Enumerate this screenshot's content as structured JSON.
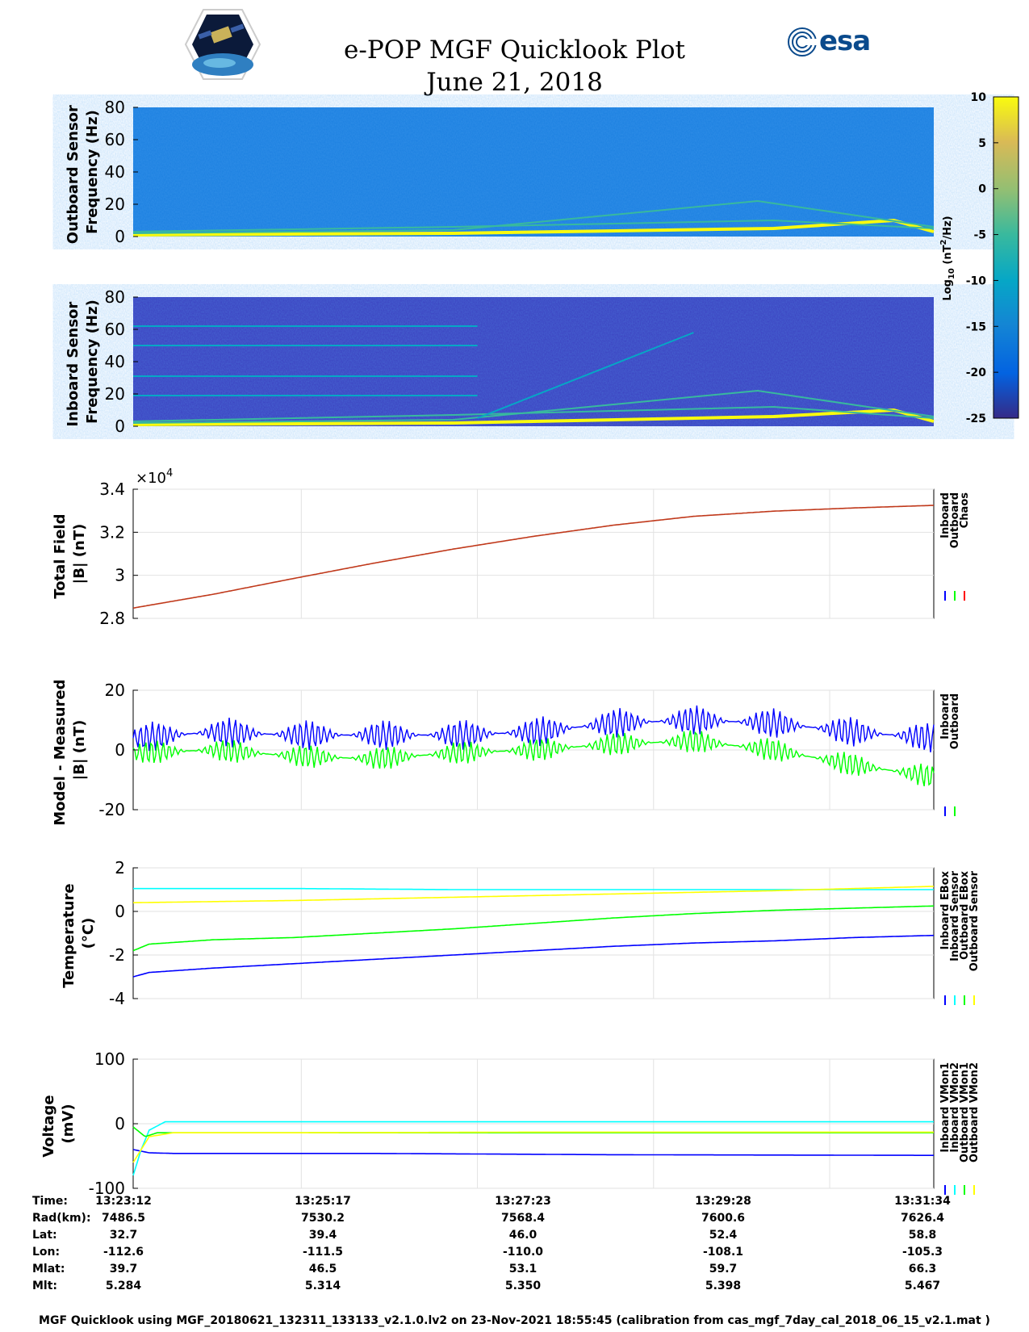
{
  "header": {
    "title_line1": "e-POP MGF Quicklook Plot",
    "title_line2": "June 21, 2018",
    "esa_text": "esa"
  },
  "colorbar": {
    "label": "Log10 (nT2/Hz)",
    "ticks": [
      10,
      5,
      0,
      -5,
      -10,
      -15,
      -20,
      -25
    ]
  },
  "chart_data": [
    {
      "type": "heatmap",
      "name": "outboard-spectrogram",
      "ylabel": "Outboard Sensor Frequency (Hz)",
      "ylim": [
        0,
        80
      ],
      "yticks": [
        0,
        20,
        40,
        60,
        80
      ],
      "clim": [
        -25,
        10
      ],
      "background_level": -13,
      "lines": [
        {
          "x": [
            0,
            0.4,
            0.8,
            0.95,
            1
          ],
          "y": [
            1,
            2,
            5,
            10,
            3
          ],
          "level": 8
        },
        {
          "x": [
            0,
            0.4,
            0.78,
            1
          ],
          "y": [
            2,
            4,
            22,
            6
          ],
          "level": -8
        },
        {
          "x": [
            0,
            0.4,
            0.8,
            1
          ],
          "y": [
            3,
            6,
            10,
            5
          ],
          "level": -6
        }
      ]
    },
    {
      "type": "heatmap",
      "name": "inboard-spectrogram",
      "ylabel": "Inboard Sensor Frequency (Hz)",
      "ylim": [
        0,
        80
      ],
      "yticks": [
        0,
        20,
        40,
        60,
        80
      ],
      "clim": [
        -25,
        10
      ],
      "background_level": -21,
      "lines": [
        {
          "x": [
            0,
            0.4,
            0.8,
            0.95,
            1
          ],
          "y": [
            1,
            2,
            6,
            10,
            3
          ],
          "level": 8
        },
        {
          "x": [
            0,
            0.4,
            0.78,
            1
          ],
          "y": [
            2,
            4,
            22,
            6
          ],
          "level": -6
        },
        {
          "x": [
            0,
            0.4,
            0.8,
            1
          ],
          "y": [
            3,
            7,
            12,
            5
          ],
          "level": -8
        },
        {
          "x": [
            0,
            0.43
          ],
          "y": [
            19,
            19
          ],
          "level": -10
        },
        {
          "x": [
            0,
            0.43
          ],
          "y": [
            31,
            31
          ],
          "level": -12
        },
        {
          "x": [
            0,
            0.43
          ],
          "y": [
            50,
            50
          ],
          "level": -13
        },
        {
          "x": [
            0,
            0.43
          ],
          "y": [
            62,
            62
          ],
          "level": -14
        },
        {
          "x": [
            0.43,
            0.7
          ],
          "y": [
            5,
            58
          ],
          "level": -13
        }
      ]
    },
    {
      "type": "line",
      "name": "total-field",
      "ylabel": "Total Field |B| (nT)",
      "multiplier": "×10",
      "multiplier_exp": "4",
      "ylim": [
        2.8,
        3.4
      ],
      "yticks": [
        2.8,
        3,
        3.2,
        3.4
      ],
      "ytick_labels": [
        "2.8",
        "3",
        "3.2",
        "3.4"
      ],
      "legend": [
        "Inboard",
        "Outboard",
        "Chaos"
      ],
      "legend_colors": [
        "#0000ff",
        "#00ff00",
        "#ff0000"
      ],
      "series": [
        {
          "name": "Chaos",
          "color": "#c0391b",
          "x": [
            0,
            0.1,
            0.2,
            0.3,
            0.4,
            0.5,
            0.6,
            0.7,
            0.8,
            0.9,
            1.0
          ],
          "values": [
            2.848,
            2.912,
            2.985,
            3.056,
            3.122,
            3.181,
            3.233,
            3.274,
            3.298,
            3.313,
            3.325
          ]
        }
      ]
    },
    {
      "type": "line",
      "name": "model-minus-measured",
      "ylabel": "Model - Measured |B| (nT)",
      "ylim": [
        -20,
        20
      ],
      "yticks": [
        -20,
        0,
        20
      ],
      "ytick_labels": [
        "-20",
        "0",
        "20"
      ],
      "legend": [
        "Inboard",
        "Outboard"
      ],
      "legend_colors": [
        "#0000ff",
        "#00ff00"
      ],
      "series": [
        {
          "name": "Inboard",
          "color": "#0000ff",
          "x": [
            0,
            0.1,
            0.2,
            0.3,
            0.4,
            0.5,
            0.6,
            0.7,
            0.8,
            0.9,
            1.0
          ],
          "values": [
            4,
            6,
            5,
            5,
            5,
            6,
            9,
            10,
            9,
            6,
            4
          ],
          "amplitude": 5
        },
        {
          "name": "Outboard",
          "color": "#00ff00",
          "x": [
            0,
            0.1,
            0.2,
            0.3,
            0.4,
            0.5,
            0.6,
            0.7,
            0.8,
            0.9,
            1.0
          ],
          "values": [
            -1,
            0,
            -2,
            -3,
            -1,
            0,
            2,
            3,
            0,
            -5,
            -9
          ],
          "amplitude": 4
        }
      ]
    },
    {
      "type": "line",
      "name": "temperature",
      "ylabel": "Temperature (°C)",
      "ylim": [
        -4,
        2
      ],
      "yticks": [
        -4,
        -2,
        0,
        2
      ],
      "ytick_labels": [
        "-4",
        "-2",
        "0",
        "2"
      ],
      "legend": [
        "Inboard EBox",
        "Inboard Sensor",
        "Outboard EBox",
        "Outboard Sensor"
      ],
      "legend_colors": [
        "#0000ff",
        "#00ffff",
        "#00ff00",
        "#ffff00"
      ],
      "series": [
        {
          "name": "Inboard EBox",
          "color": "#0000ff",
          "x": [
            0,
            0.02,
            0.1,
            0.2,
            0.3,
            0.4,
            0.5,
            0.6,
            0.7,
            0.8,
            0.9,
            1.0
          ],
          "values": [
            -3.0,
            -2.8,
            -2.6,
            -2.4,
            -2.2,
            -2.0,
            -1.8,
            -1.6,
            -1.45,
            -1.35,
            -1.2,
            -1.1
          ]
        },
        {
          "name": "Inboard Sensor",
          "color": "#00ffff",
          "x": [
            0,
            0.2,
            0.4,
            0.6,
            0.8,
            1.0
          ],
          "values": [
            1.05,
            1.05,
            1.0,
            1.0,
            1.0,
            1.0
          ]
        },
        {
          "name": "Outboard EBox",
          "color": "#00ff00",
          "x": [
            0,
            0.02,
            0.1,
            0.2,
            0.3,
            0.4,
            0.5,
            0.6,
            0.7,
            0.8,
            0.9,
            1.0
          ],
          "values": [
            -1.8,
            -1.5,
            -1.3,
            -1.2,
            -1.0,
            -0.8,
            -0.55,
            -0.3,
            -0.1,
            0.05,
            0.15,
            0.25
          ]
        },
        {
          "name": "Outboard Sensor",
          "color": "#ffff00",
          "x": [
            0,
            0.2,
            0.4,
            0.6,
            0.8,
            1.0
          ],
          "values": [
            0.4,
            0.5,
            0.65,
            0.8,
            0.95,
            1.15
          ]
        }
      ]
    },
    {
      "type": "line",
      "name": "voltage",
      "ylabel": "Voltage (mV)",
      "ylim": [
        -100,
        100
      ],
      "yticks": [
        -100,
        0,
        100
      ],
      "ytick_labels": [
        "-100",
        "0",
        "100"
      ],
      "legend": [
        "Inboard VMon1",
        "Inboard VMon2",
        "Outboard VMon1",
        "Outboard VMon2"
      ],
      "legend_colors": [
        "#0000ff",
        "#00ffff",
        "#00ff00",
        "#ffff00"
      ],
      "series": [
        {
          "name": "Inboard VMon1",
          "color": "#0000ff",
          "x": [
            0,
            0.02,
            0.05,
            0.3,
            0.6,
            1.0
          ],
          "values": [
            -40,
            -45,
            -46,
            -46,
            -48,
            -49
          ]
        },
        {
          "name": "Inboard VMon2",
          "color": "#00ffff",
          "x": [
            0,
            0.01,
            0.02,
            0.04,
            0.1,
            1.0
          ],
          "values": [
            -80,
            -40,
            -10,
            3,
            3,
            3
          ]
        },
        {
          "name": "Outboard VMon1",
          "color": "#00ff00",
          "x": [
            0,
            0.015,
            0.03,
            0.1,
            0.5,
            1.0
          ],
          "values": [
            -5,
            -20,
            -14,
            -14,
            -14,
            -14
          ]
        },
        {
          "name": "Outboard VMon2",
          "color": "#ffff00",
          "x": [
            0,
            0.02,
            0.05,
            0.2,
            0.5,
            1.0
          ],
          "values": [
            -60,
            -20,
            -14,
            -14,
            -13,
            -13
          ]
        }
      ]
    }
  ],
  "time_table": {
    "rows": [
      {
        "label": "Time:",
        "values": [
          "13:23:12",
          "13:25:17",
          "13:27:23",
          "13:29:28",
          "13:31:34"
        ]
      },
      {
        "label": "Rad(km):",
        "values": [
          "7486.5",
          "7530.2",
          "7568.4",
          "7600.6",
          "7626.4"
        ]
      },
      {
        "label": "Lat:",
        "values": [
          "32.7",
          "39.4",
          "46.0",
          "52.4",
          "58.8"
        ]
      },
      {
        "label": "Lon:",
        "values": [
          "-112.6",
          "-111.5",
          "-110.0",
          "-108.1",
          "-105.3"
        ]
      },
      {
        "label": "Mlat:",
        "values": [
          "39.7",
          "46.5",
          "53.1",
          "59.7",
          "66.3"
        ]
      },
      {
        "label": "Mlt:",
        "values": [
          "5.284",
          "5.314",
          "5.350",
          "5.398",
          "5.467"
        ]
      }
    ]
  },
  "footer": "MGF Quicklook using MGF_20180621_132311_133133_v2.1.0.lv2 on 23-Nov-2021 18:55:45 (calibration from cas_mgf_7day_cal_2018_06_15_v2.1.mat )"
}
